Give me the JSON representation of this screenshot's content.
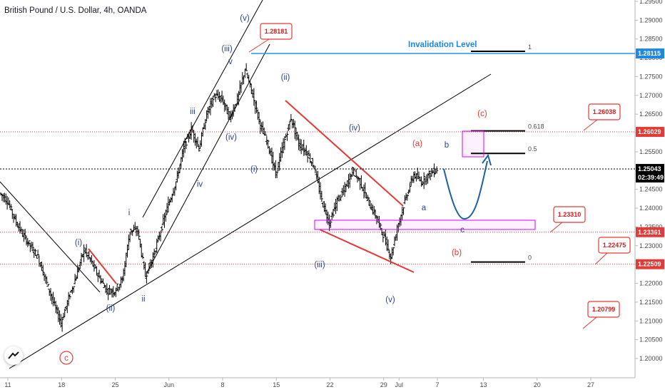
{
  "header": {
    "title": "British Pound / U.S. Dollar, 4h, OANDA"
  },
  "chart_data": {
    "type": "candlestick",
    "symbol": "British Pound / U.S. Dollar",
    "timeframe": "4h",
    "source": "OANDA",
    "ylim": [
      1.1955,
      1.299
    ],
    "xlim": [
      -2,
      84
    ],
    "y_ticks": [
      "1.29500",
      "1.29000",
      "1.28500",
      "1.28000",
      "1.27500",
      "1.27000",
      "1.26500",
      "1.26000",
      "1.25500",
      "1.25000",
      "1.24500",
      "1.24000",
      "1.23500",
      "1.23000",
      "1.22500",
      "1.22000",
      "1.21500",
      "1.21000",
      "1.20500",
      "1.20000"
    ],
    "x_ticks": [
      {
        "label": "11",
        "x": 0
      },
      {
        "label": "18",
        "x": 7
      },
      {
        "label": "25",
        "x": 14
      },
      {
        "label": "Jun",
        "x": 21
      },
      {
        "label": "8",
        "x": 28
      },
      {
        "label": "15",
        "x": 35
      },
      {
        "label": "22",
        "x": 42
      },
      {
        "label": "29",
        "x": 49
      },
      {
        "label": "Jul",
        "x": 51
      },
      {
        "label": "7",
        "x": 56
      },
      {
        "label": "13",
        "x": 62
      },
      {
        "label": "20",
        "x": 69
      },
      {
        "label": "27",
        "x": 76
      }
    ],
    "price_path": [
      [
        -1,
        1.244
      ],
      [
        0,
        1.242
      ],
      [
        1,
        1.237
      ],
      [
        2,
        1.233
      ],
      [
        3,
        1.23
      ],
      [
        4,
        1.227
      ],
      [
        5,
        1.221
      ],
      [
        6,
        1.215
      ],
      [
        7,
        1.2095
      ],
      [
        8,
        1.216
      ],
      [
        9,
        1.222
      ],
      [
        10,
        1.229
      ],
      [
        11,
        1.2255
      ],
      [
        12,
        1.2215
      ],
      [
        13,
        1.218
      ],
      [
        14,
        1.218
      ],
      [
        15,
        1.221
      ],
      [
        16,
        1.234
      ],
      [
        17,
        1.234
      ],
      [
        18,
        1.222
      ],
      [
        19,
        1.227
      ],
      [
        20,
        1.234
      ],
      [
        21,
        1.241
      ],
      [
        22,
        1.247
      ],
      [
        23,
        1.256
      ],
      [
        24,
        1.261
      ],
      [
        25,
        1.256
      ],
      [
        26,
        1.265
      ],
      [
        27,
        1.27
      ],
      [
        28,
        1.269
      ],
      [
        29,
        1.264
      ],
      [
        30,
        1.269
      ],
      [
        31,
        1.277
      ],
      [
        32,
        1.27
      ],
      [
        33,
        1.262
      ],
      [
        34,
        1.257
      ],
      [
        35,
        1.249
      ],
      [
        36,
        1.257
      ],
      [
        37,
        1.264
      ],
      [
        38,
        1.257
      ],
      [
        39,
        1.255
      ],
      [
        40,
        1.251
      ],
      [
        41,
        1.242
      ],
      [
        42,
        1.236
      ],
      [
        43,
        1.242
      ],
      [
        44,
        1.245
      ],
      [
        45,
        1.25
      ],
      [
        46,
        1.247
      ],
      [
        47,
        1.242
      ],
      [
        48,
        1.238
      ],
      [
        49,
        1.233
      ],
      [
        50,
        1.227
      ],
      [
        51,
        1.236
      ],
      [
        52,
        1.243
      ],
      [
        53,
        1.249
      ],
      [
        54,
        1.247
      ],
      [
        55,
        1.249
      ],
      [
        56,
        1.2504
      ]
    ],
    "current_price": "1.25043",
    "countdown": "02:39:49",
    "levels": [
      {
        "label": "1",
        "value": 1.28115,
        "tag": "1.28115",
        "color": "#2196f3"
      },
      {
        "label": "0.618",
        "value": 1.26029,
        "tag": "1.26029",
        "color": "#e53935"
      },
      {
        "label": "0.5",
        "value": 1.254,
        "tag": "",
        "color": "#000000"
      },
      {
        "label": "0",
        "value": 1.22509,
        "tag": "1.22509",
        "color": "#e53935"
      }
    ],
    "zone_tags": [
      "1.23361"
    ],
    "callouts": [
      "1.28181",
      "1.26038",
      "1.23310",
      "1.22475",
      "1.20799"
    ],
    "annotations": {
      "invalidation": "Invalidation Level",
      "wave_labels_blue": [
        "(v)",
        "(iii)",
        "v",
        "iii",
        "(iv)",
        "iv",
        "i",
        "(i)",
        "ii",
        "(ii)",
        "(ii)",
        "(i)",
        "(iv)",
        "(iii)",
        "(v)",
        "a",
        "b",
        "c"
      ],
      "wave_labels_red": [
        "(a)",
        "(b)",
        "(c)"
      ],
      "circle_label": "c"
    }
  },
  "colors": {
    "bull": "#000000",
    "trend": "#000000",
    "red": "#e53935",
    "blue": "#1e88e5",
    "wave_blue": "#2a3f9d",
    "magenta": "#d500f9"
  }
}
